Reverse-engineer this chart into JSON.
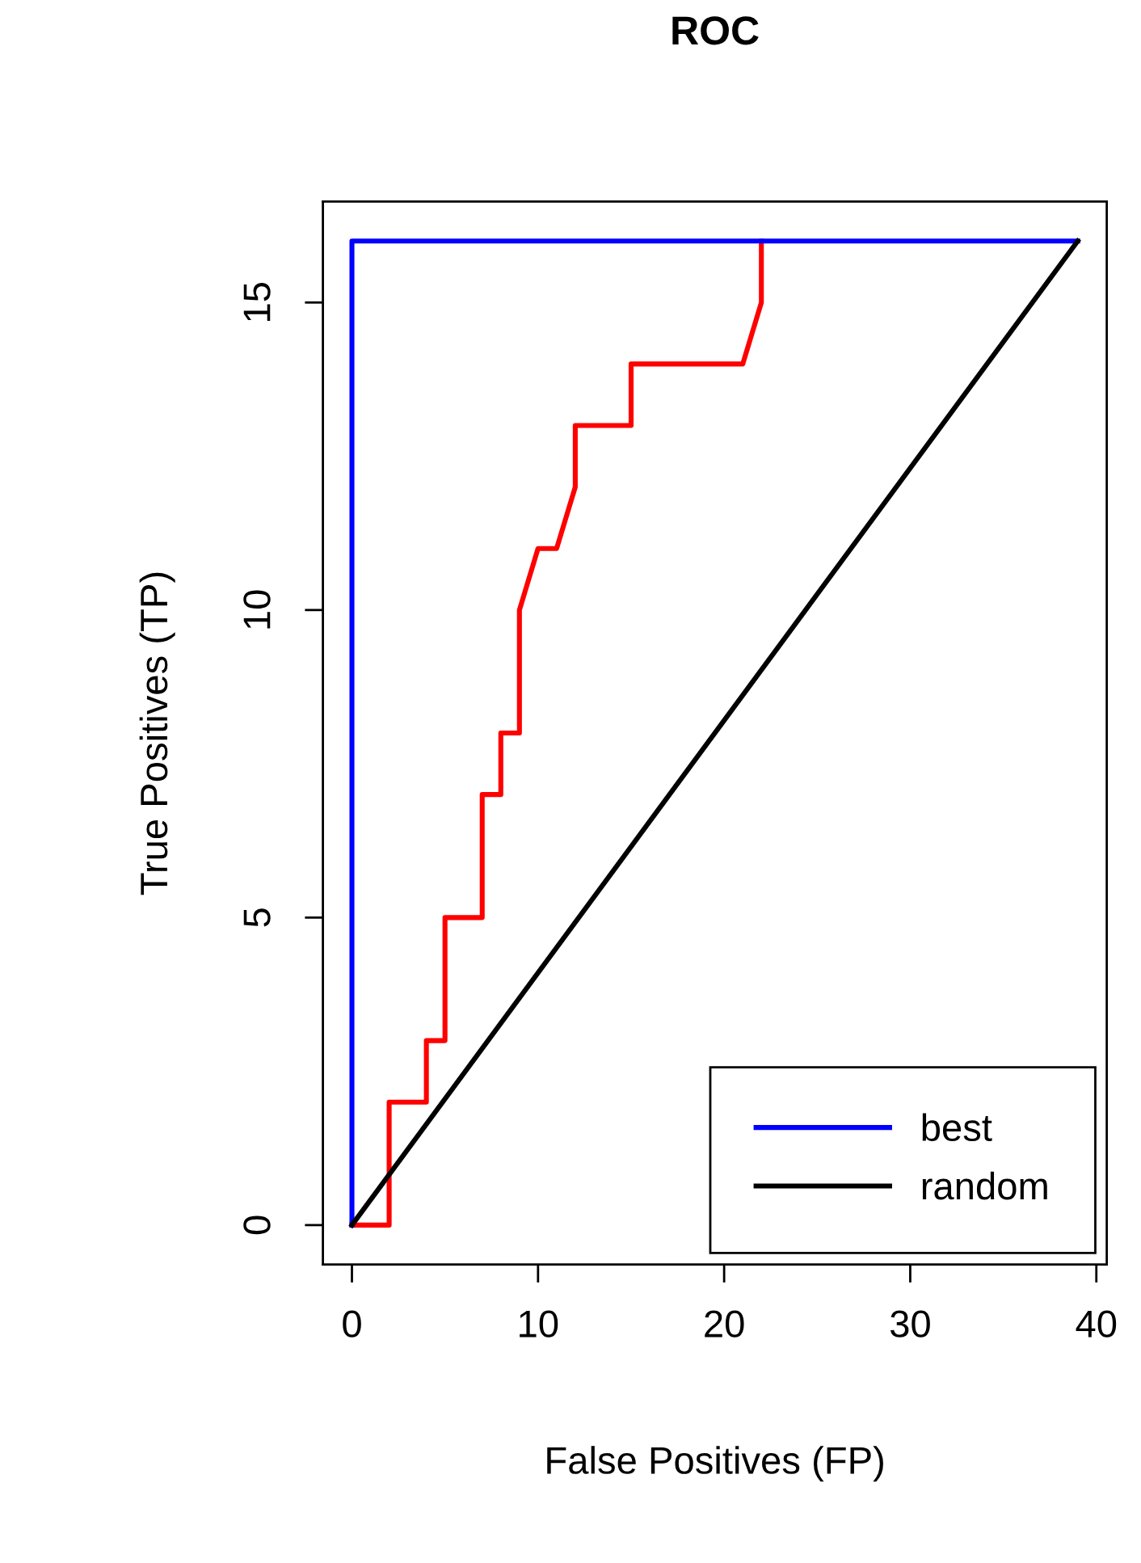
{
  "chart_data": {
    "type": "line",
    "title": "ROC",
    "xlabel": "False Positives (FP)",
    "ylabel": "True Positives (TP)",
    "xlim": [
      -1.56,
      40.56
    ],
    "ylim": [
      -0.64,
      16.64
    ],
    "xticks": [
      0,
      10,
      20,
      30,
      40
    ],
    "yticks": [
      0,
      5,
      10,
      15
    ],
    "grid": false,
    "legend": "bottom right",
    "marker": "none",
    "line_style": "solid",
    "series": [
      {
        "color": "#ff0000",
        "x": [
          0,
          2,
          2,
          4,
          4,
          5,
          5,
          7,
          7,
          8,
          8,
          9,
          9,
          10,
          11,
          12,
          12,
          15,
          15,
          21,
          22,
          22
        ],
        "values": [
          0,
          0,
          2,
          2,
          3,
          3,
          5,
          5,
          7,
          7,
          8,
          8,
          10,
          11,
          11,
          12,
          13,
          13,
          14,
          14,
          15,
          16
        ]
      },
      {
        "name": "best",
        "color": "#0000ff",
        "x": [
          0,
          0,
          39
        ],
        "values": [
          0,
          16,
          16
        ]
      },
      {
        "name": "random",
        "color": "#000000",
        "x": [
          0,
          39
        ],
        "values": [
          0,
          16
        ]
      }
    ]
  }
}
